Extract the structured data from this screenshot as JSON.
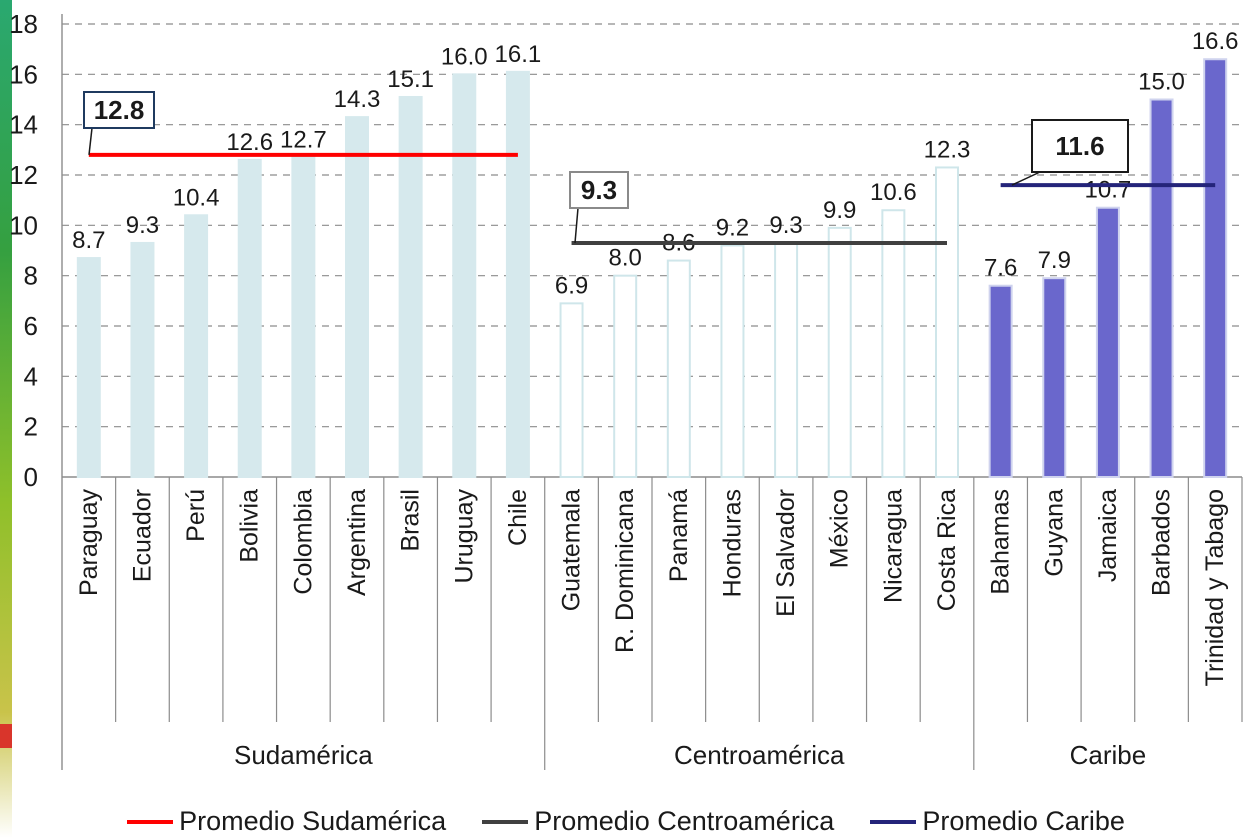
{
  "chart_data": {
    "type": "bar",
    "ylim": [
      0,
      18
    ],
    "yticks": [
      0,
      2,
      4,
      6,
      8,
      10,
      12,
      14,
      16,
      18
    ],
    "grid": true,
    "legend_position": "bottom",
    "categories": [
      "Paraguay",
      "Ecuador",
      "Perú",
      "Bolivia",
      "Colombia",
      "Argentina",
      "Brasil",
      "Uruguay",
      "Chile",
      "Guatemala",
      "R. Dominicana",
      "Panamá",
      "Honduras",
      "El Salvador",
      "México",
      "Nicaragua",
      "Costa Rica",
      "Bahamas",
      "Guyana",
      "Jamaica",
      "Barbados",
      "Trinidad y Tabago"
    ],
    "values": [
      8.7,
      9.3,
      10.4,
      12.6,
      12.7,
      14.3,
      15.1,
      16.0,
      16.1,
      6.9,
      8.0,
      8.6,
      9.2,
      9.3,
      9.9,
      10.6,
      12.3,
      7.6,
      7.9,
      10.7,
      15.0,
      16.6
    ],
    "value_labels": [
      "8.7",
      "9.3",
      "10.4",
      "12.6",
      "12.7",
      "14.3",
      "15.1",
      "16.0",
      "16.1",
      "6.9",
      "8.0",
      "8.6",
      "9.2",
      "9.3",
      "9.9",
      "10.6",
      "12.3",
      "7.6",
      "7.9",
      "10.7",
      "15.0",
      "16.6"
    ],
    "groups": [
      {
        "name": "Sudamérica",
        "count": 9,
        "fill": "#d6e9ed",
        "stroke": "#d6e9ed"
      },
      {
        "name": "Centroamérica",
        "count": 8,
        "fill": "#ffffff",
        "stroke": "#cfe6ea"
      },
      {
        "name": "Caribe",
        "count": 5,
        "fill": "#6a67cc",
        "stroke": "#cfd3ee"
      }
    ],
    "averages": [
      {
        "name": "Promedio Sudamérica",
        "value": 12.8,
        "label": "12.8",
        "color": "#ff0000",
        "box_border": "#1f3a5f",
        "label_color": "#1a1a1a"
      },
      {
        "name": "Promedio Centroamérica",
        "value": 9.3,
        "label": "9.3",
        "color": "#404040",
        "box_border": "#8a8a8a",
        "label_color": "#2f3e5a"
      },
      {
        "name": "Promedio Caribe",
        "value": 11.6,
        "label": "11.6",
        "color": "#24247a",
        "box_border": "#1a1a1a",
        "label_color": "#2f3e5a"
      }
    ]
  },
  "legend": [
    {
      "label": "Promedio Sudamérica",
      "color": "#ff0000"
    },
    {
      "label": "Promedio Centroamérica",
      "color": "#404040"
    },
    {
      "label": "Promedio Caribe",
      "color": "#24247a"
    }
  ]
}
